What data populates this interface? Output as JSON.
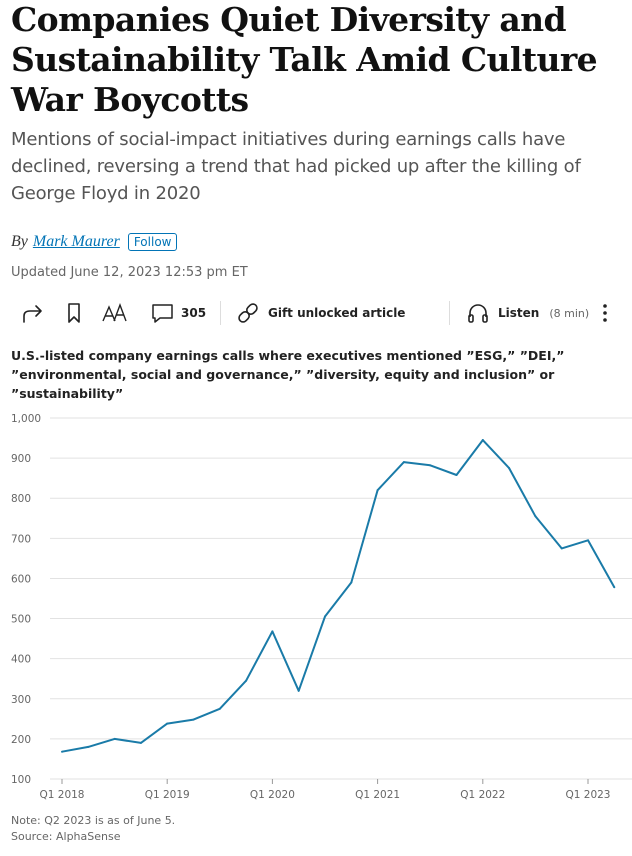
{
  "article": {
    "headline": "Companies Quiet Diversity and Sustainability Talk Amid Culture War Boycotts",
    "dek": "Mentions of social-impact initiatives during earnings calls have declined, reversing a trend that had picked up after the killing of George Floyd in 2020",
    "byline_prefix": "By",
    "author": "Mark Maurer",
    "follow_label": "Follow",
    "updated": "Updated June 12, 2023 12:53 pm ET"
  },
  "toolbar": {
    "share_icon": "share-icon",
    "bookmark_icon": "bookmark-icon",
    "text_size_icon": "text-size-icon",
    "comments_count": "305",
    "gift_label": "Gift unlocked article",
    "listen_label": "Listen",
    "listen_duration": "(8 min)"
  },
  "chart_data": {
    "type": "line",
    "title": "U.S.-listed company earnings calls where executives mentioned ”ESG,” ”DEI,” ”environmental, social and governance,” ”diversity, equity and inclusion” or ”sustainability”",
    "x": [
      "Q1 2018",
      "Q2 2018",
      "Q3 2018",
      "Q4 2018",
      "Q1 2019",
      "Q2 2019",
      "Q3 2019",
      "Q4 2019",
      "Q1 2020",
      "Q2 2020",
      "Q3 2020",
      "Q4 2020",
      "Q1 2021",
      "Q2 2021",
      "Q3 2021",
      "Q4 2021",
      "Q1 2022",
      "Q2 2022",
      "Q3 2022",
      "Q4 2022",
      "Q1 2023",
      "Q2 2023"
    ],
    "values": [
      168,
      180,
      200,
      190,
      238,
      248,
      275,
      345,
      468,
      320,
      505,
      590,
      820,
      890,
      882,
      858,
      945,
      875,
      755,
      675,
      695,
      578
    ],
    "ylim": [
      100,
      1000
    ],
    "y_ticks": [
      "100",
      "200",
      "300",
      "400",
      "500",
      "600",
      "700",
      "800",
      "900",
      "1,000"
    ],
    "y_tick_values": [
      100,
      200,
      300,
      400,
      500,
      600,
      700,
      800,
      900,
      1000
    ],
    "x_tick_labels": [
      "Q1 2018",
      "Q1 2019",
      "Q1 2020",
      "Q1 2021",
      "Q1 2022",
      "Q1 2023"
    ],
    "x_tick_indices": [
      0,
      4,
      8,
      12,
      16,
      20
    ],
    "grid": true,
    "line_color": "#1a7ba8",
    "grid_color": "#e2e2e2",
    "note": "Note: Q2 2023 is as of June 5.",
    "source": "Source: AlphaSense"
  }
}
